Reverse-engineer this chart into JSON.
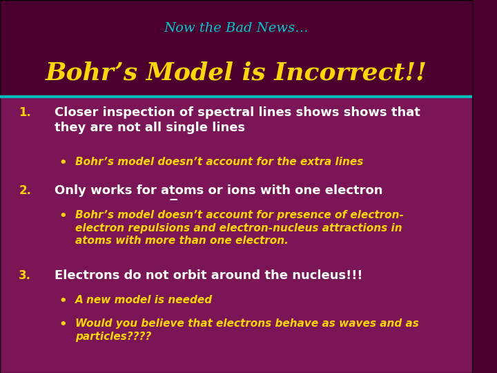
{
  "title_line1": "Now the Bad News…",
  "title_line2": "Bohr’s Model is Incorrect!!",
  "title_line1_color": "#00CCCC",
  "title_line2_color": "#FFD700",
  "header_bg": "#4B0030",
  "body_bg": "#7B1555",
  "separator_color": "#00BBBB",
  "number_color": "#FFD700",
  "items": [
    {
      "number": "1.",
      "main_text": "Closer inspection of spectral lines shows shows that\nthey are not all single lines",
      "main_color": "#FFFFFF",
      "bullets": [
        {
          "text": "Bohr’s model doesn’t account for the extra lines",
          "color": "#FFD700"
        }
      ]
    },
    {
      "number": "2.",
      "main_text": "Only works for atoms or ions with one electron",
      "main_text_pre": "Only works for atoms or ions with ",
      "main_text_under": "one",
      "main_text_post": " electron",
      "main_color": "#FFFFFF",
      "bullets": [
        {
          "text": "Bohr’s model doesn’t account for presence of electron-\nelectron repulsions and electron-nucleus attractions in\natoms with more than one electron.",
          "color": "#FFD700"
        }
      ]
    },
    {
      "number": "3.",
      "main_text": "Electrons do not orbit around the nucleus!!!",
      "main_color": "#FFFFFF",
      "bullets": [
        {
          "text": "A new model is needed",
          "color": "#FFD700"
        },
        {
          "text": "Would you believe that electrons behave as waves and as\nparticles????",
          "color": "#FFD700"
        }
      ]
    }
  ]
}
